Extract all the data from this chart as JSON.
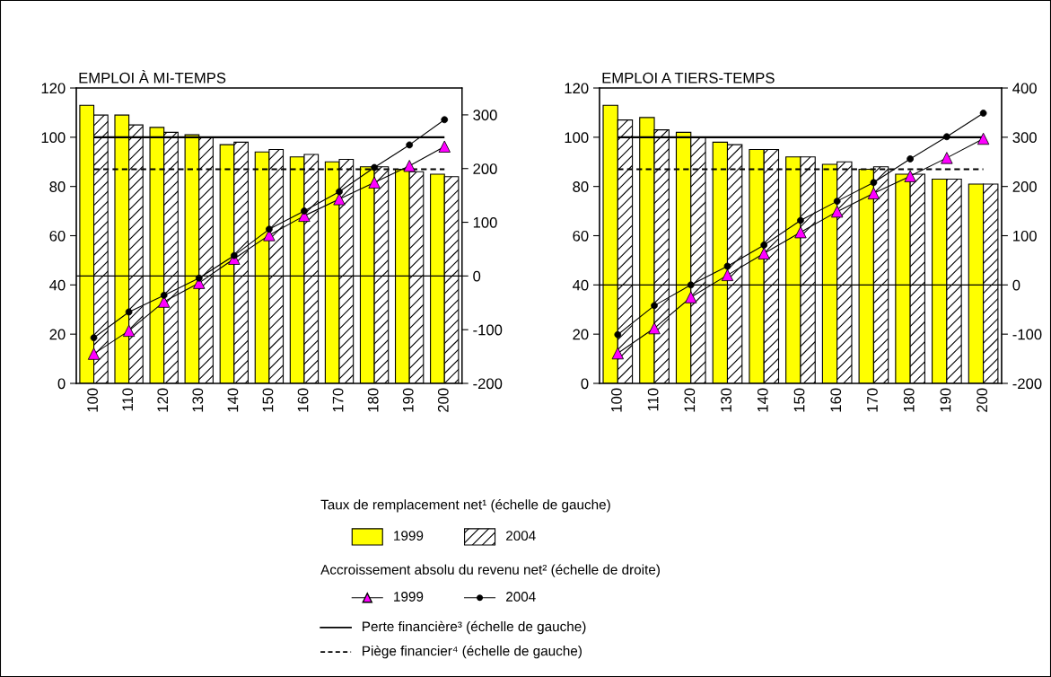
{
  "chart_data": [
    {
      "type": "bar",
      "title": "EMPLOI À MI-TEMPS",
      "categories": [
        "100",
        "110",
        "120",
        "130",
        "140",
        "150",
        "160",
        "170",
        "180",
        "190",
        "200"
      ],
      "ylim": [
        0,
        120
      ],
      "yticks": [
        0,
        20,
        40,
        60,
        80,
        100,
        120
      ],
      "y2lim": [
        -200,
        350
      ],
      "y2ticks": [
        -200,
        -100,
        0,
        100,
        200,
        300
      ],
      "legend": "bottom",
      "grid": false,
      "annotations": [
        "Taux de remplacement net¹ (échelle de gauche)",
        "Accroissement absolu du revenu net² (échelle de droite)"
      ],
      "series": [
        {
          "name": "1999",
          "color": "#ffff00",
          "values": [
            113,
            109,
            104,
            101,
            97,
            94,
            92,
            90,
            88,
            87,
            85
          ]
        },
        {
          "name": "2004",
          "color": "#000000",
          "values": [
            109,
            105,
            102,
            100,
            98,
            95,
            93,
            91,
            88,
            86,
            84
          ]
        },
        {
          "name": "1999",
          "type": "line",
          "axis": "y2",
          "color": "#ff00ff",
          "marker": "triangle",
          "values": [
            -145,
            -102,
            -48,
            -13,
            32,
            76,
            112,
            143,
            174,
            205,
            241
          ]
        },
        {
          "name": "2004",
          "type": "line",
          "axis": "y2",
          "color": "#000000",
          "marker": "circle",
          "values": [
            -115,
            -67,
            -36,
            -4,
            38,
            87,
            121,
            157,
            202,
            244,
            291
          ]
        }
      ],
      "ref_lines": [
        {
          "axis": "y",
          "value": 100,
          "label": "Perte financière³ (échelle de gauche)",
          "color": "#000000",
          "line_style": "solid"
        },
        {
          "axis": "y",
          "value": 87,
          "label": "Piège financier⁴ (échelle de gauche)",
          "color": "#000000",
          "line_style": "dashed"
        },
        {
          "axis": "y2",
          "value": 0,
          "color": "#000000",
          "line_style": "solid"
        }
      ]
    },
    {
      "type": "bar",
      "title": "EMPLOI A TIERS-TEMPS",
      "categories": [
        "100",
        "110",
        "120",
        "130",
        "140",
        "150",
        "160",
        "170",
        "180",
        "190",
        "200"
      ],
      "ylim": [
        0,
        120
      ],
      "yticks": [
        0,
        20,
        40,
        60,
        80,
        100,
        120
      ],
      "y2lim": [
        -200,
        400
      ],
      "y2ticks": [
        -200,
        -100,
        0,
        100,
        200,
        300,
        400
      ],
      "grid": false,
      "series": [
        {
          "color": "#ffff00",
          "values": [
            113,
            108,
            102,
            98,
            95,
            92,
            89,
            87,
            85,
            83,
            81
          ]
        },
        {
          "color": "#000000",
          "values": [
            107,
            103,
            100,
            97,
            95,
            92,
            90,
            88,
            85,
            83,
            81
          ]
        },
        {
          "type": "line",
          "axis": "y2",
          "color": "#ff00ff",
          "marker": "triangle",
          "values": [
            -139,
            -88,
            -25,
            20,
            64,
            107,
            149,
            186,
            221,
            258,
            297
          ]
        },
        {
          "type": "line",
          "axis": "y2",
          "color": "#000000",
          "marker": "circle",
          "values": [
            -101,
            -42,
            0,
            38,
            81,
            131,
            170,
            208,
            256,
            301,
            349
          ]
        }
      ],
      "ref_lines": [
        {
          "axis": "y",
          "value": 100,
          "color": "#000000",
          "line_style": "solid"
        },
        {
          "axis": "y",
          "value": 87,
          "color": "#000000",
          "line_style": "dashed"
        },
        {
          "axis": "y2",
          "value": 0,
          "color": "#000000",
          "line_style": "solid"
        }
      ]
    }
  ]
}
